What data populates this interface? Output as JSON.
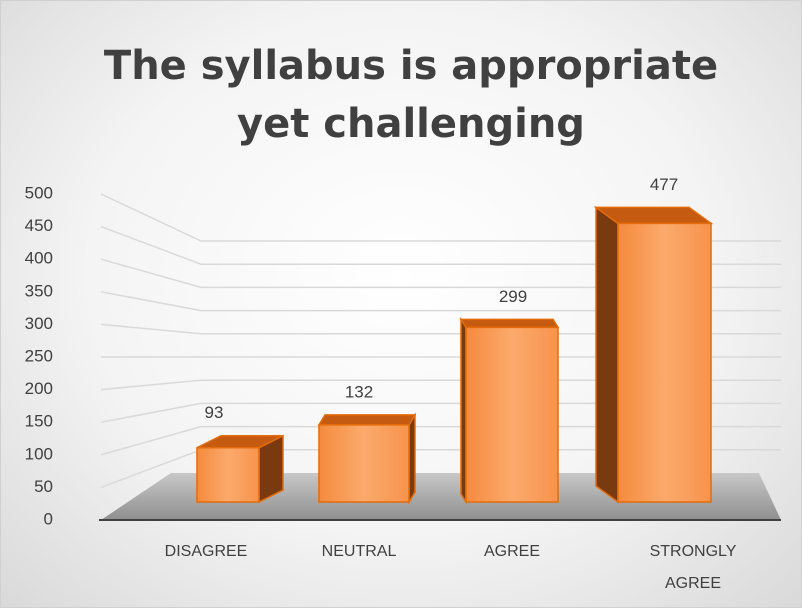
{
  "chart_data": {
    "type": "bar3d",
    "title": "The syllabus is appropriate yet challenging",
    "categories": [
      "DISAGREE",
      "NEUTRAL",
      "AGREE",
      "STRONGLY AGREE"
    ],
    "values": [
      93,
      132,
      299,
      477
    ],
    "color": "#f79646",
    "ylim": [
      0,
      500
    ],
    "yticks": [
      0,
      50,
      100,
      150,
      200,
      250,
      300,
      350,
      400,
      450,
      500
    ],
    "grid": true
  }
}
